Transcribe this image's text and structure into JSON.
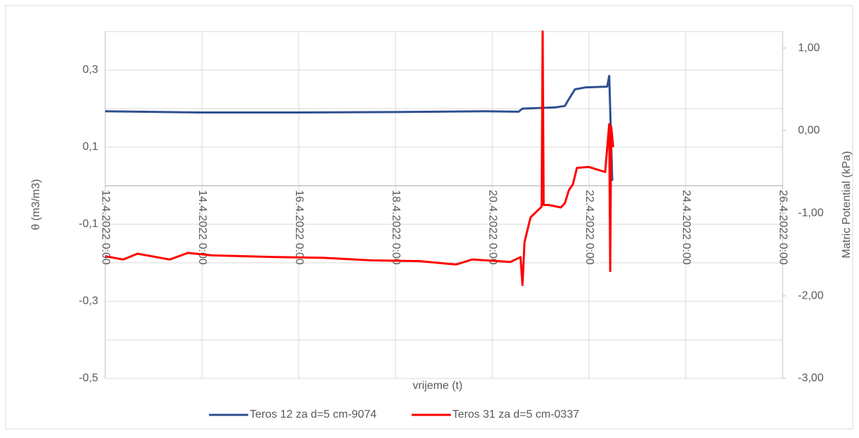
{
  "chart_data": {
    "type": "line",
    "xlabel": "vrijeme (t)",
    "ylabel": "θ  (m3/m3)",
    "y2label": "Matric Potential (kPa)",
    "xlim": [
      "2022-04-12 00:00",
      "2022-04-26 00:00"
    ],
    "xticks": [
      {
        "value": "2022-04-12 00:00",
        "label": "12.4.2022 0:00"
      },
      {
        "value": "2022-04-14 00:00",
        "label": "14.4.2022 0:00"
      },
      {
        "value": "2022-04-16 00:00",
        "label": "16.4.2022 0:00"
      },
      {
        "value": "2022-04-18 00:00",
        "label": "18.4.2022 0:00"
      },
      {
        "value": "2022-04-20 00:00",
        "label": "20.4.2022 0:00"
      },
      {
        "value": "2022-04-22 00:00",
        "label": "22.4.2022 0:00"
      },
      {
        "value": "2022-04-24 00:00",
        "label": "24.4.2022 0:00"
      },
      {
        "value": "2022-04-26 00:00",
        "label": "26.4.2022 0:00"
      }
    ],
    "ylim": [
      -0.5,
      0.4
    ],
    "yticks": [
      {
        "value": -0.5,
        "label": "-0,5"
      },
      {
        "value": -0.3,
        "label": "-0,3"
      },
      {
        "value": -0.1,
        "label": "-0,1"
      },
      {
        "value": 0.1,
        "label": "0,1"
      },
      {
        "value": 0.3,
        "label": "0,3"
      }
    ],
    "ygrid": [
      -0.4,
      -0.2,
      0,
      0.2,
      0.4
    ],
    "y2lim": [
      -3,
      1.2
    ],
    "y2ticks": [
      {
        "value": -3,
        "label": "-3,00"
      },
      {
        "value": -2,
        "label": "-2,00"
      },
      {
        "value": -1,
        "label": "-1,00"
      },
      {
        "value": 0,
        "label": "0,00"
      },
      {
        "value": 1,
        "label": "1,00"
      }
    ],
    "grid": true,
    "legend": "bottom",
    "series": [
      {
        "name": "Teros 12 za d=5 cm-9074",
        "color": "#2f4f8f",
        "axis": "y",
        "x": [
          "2022-04-12 00:00",
          "2022-04-14 00:00",
          "2022-04-15 22:00",
          "2022-04-17 23:00",
          "2022-04-19 20:00",
          "2022-04-20 13:00",
          "2022-04-20 15:00",
          "2022-04-21 07:00",
          "2022-04-21 12:00",
          "2022-04-21 14:00",
          "2022-04-21 17:00",
          "2022-04-21 22:00",
          "2022-04-22 09:00",
          "2022-04-22 10:00",
          "2022-04-22 11:30"
        ],
        "values": [
          0.193,
          0.19,
          0.19,
          0.191,
          0.193,
          0.192,
          0.2,
          0.203,
          0.207,
          0.225,
          0.25,
          0.255,
          0.257,
          0.285,
          0.013
        ]
      },
      {
        "name": "Teros 31 za d=5 cm-0337",
        "color": "#ff0000",
        "axis": "y2",
        "x": [
          "2022-04-12 00:00",
          "2022-04-12 09:00",
          "2022-04-12 16:00",
          "2022-04-13 08:00",
          "2022-04-13 17:00",
          "2022-04-14 05:00",
          "2022-04-15 12:00",
          "2022-04-16 12:00",
          "2022-04-17 12:00",
          "2022-04-18 12:00",
          "2022-04-19 06:00",
          "2022-04-19 14:00",
          "2022-04-20 09:00",
          "2022-04-20 14:00",
          "2022-04-20 15:00",
          "2022-04-20 16:00",
          "2022-04-20 19:00",
          "2022-04-21 00:30",
          "2022-04-21 01:00",
          "2022-04-21 01:30",
          "2022-04-21 04:00",
          "2022-04-21 10:00",
          "2022-04-21 12:00",
          "2022-04-21 14:00",
          "2022-04-21 16:00",
          "2022-04-21 18:00",
          "2022-04-22 00:00",
          "2022-04-22 08:00",
          "2022-04-22 10:00",
          "2022-04-22 10:30",
          "2022-04-22 11:00",
          "2022-04-22 12:00"
        ],
        "values": [
          -1.52,
          -1.56,
          -1.49,
          -1.56,
          -1.48,
          -1.51,
          -1.53,
          -1.54,
          -1.57,
          -1.58,
          -1.62,
          -1.56,
          -1.59,
          -1.53,
          -1.87,
          -1.35,
          -1.05,
          -0.92,
          1.2,
          -0.9,
          -0.9,
          -0.93,
          -0.88,
          -0.72,
          -0.65,
          -0.45,
          -0.44,
          -0.5,
          0.08,
          -1.7,
          0.05,
          -0.2
        ]
      }
    ]
  }
}
